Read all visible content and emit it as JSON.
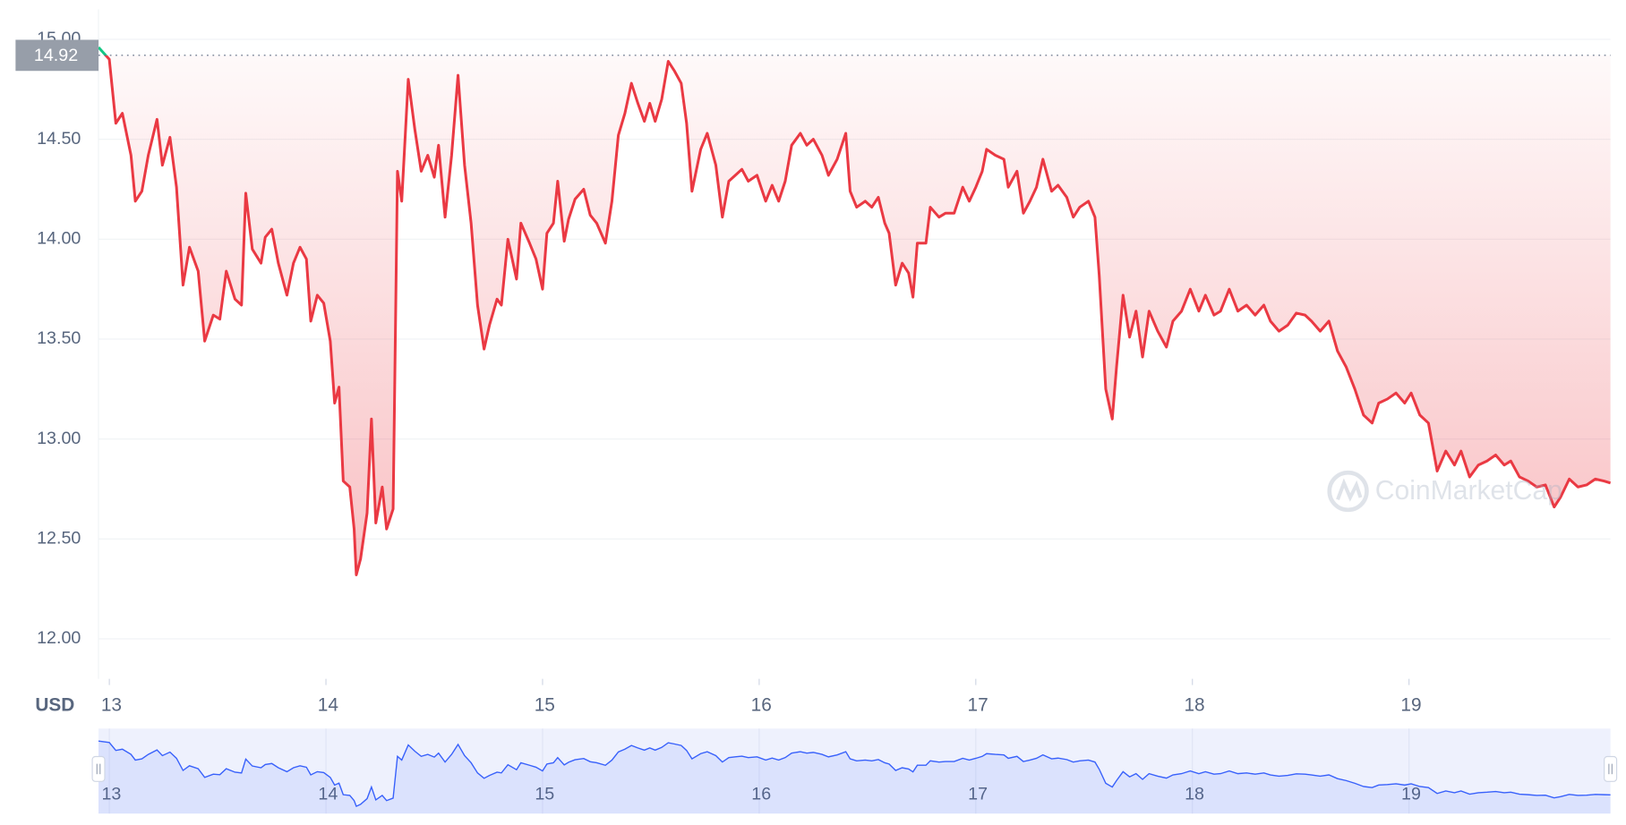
{
  "chart_data": {
    "type": "line",
    "y_axis_label": "USD",
    "watermark": "CoinMarketCap",
    "reference_price": 14.92,
    "grid": true,
    "color": "#ea3943",
    "up_color": "#16c784",
    "navigator_color": "#3861fb",
    "xlim": [
      12.95,
      19.93
    ],
    "xticks": [
      13,
      14,
      15,
      16,
      17,
      18,
      19
    ],
    "ylim": [
      11.8,
      15.15
    ],
    "yticks": [
      {
        "value": 12,
        "label": "12.00"
      },
      {
        "value": 12.5,
        "label": "12.50"
      },
      {
        "value": 13,
        "label": "13.00"
      },
      {
        "value": 13.5,
        "label": "13.50"
      },
      {
        "value": 14,
        "label": "14.00"
      },
      {
        "value": 14.5,
        "label": "14.50"
      },
      {
        "value": 15,
        "label": "15.00"
      }
    ],
    "x": [
      12.95,
      13.0,
      13.03,
      13.06,
      13.1,
      13.12,
      13.15,
      13.18,
      13.22,
      13.245,
      13.28,
      13.31,
      13.34,
      13.37,
      13.41,
      13.44,
      13.48,
      13.51,
      13.54,
      13.58,
      13.61,
      13.63,
      13.66,
      13.7,
      13.72,
      13.75,
      13.78,
      13.82,
      13.85,
      13.88,
      13.91,
      13.93,
      13.96,
      13.99,
      14.02,
      14.04,
      14.06,
      14.08,
      14.11,
      14.13,
      14.14,
      14.16,
      14.19,
      14.21,
      14.23,
      14.26,
      14.28,
      14.31,
      14.33,
      14.35,
      14.38,
      14.41,
      14.44,
      14.47,
      14.5,
      14.52,
      14.55,
      14.58,
      14.61,
      14.64,
      14.67,
      14.7,
      14.73,
      14.755,
      14.79,
      14.81,
      14.84,
      14.88,
      14.9,
      14.94,
      14.97,
      15.0,
      15.02,
      15.05,
      15.07,
      15.1,
      15.12,
      15.15,
      15.19,
      15.22,
      15.25,
      15.29,
      15.32,
      15.35,
      15.38,
      15.41,
      15.44,
      15.47,
      15.495,
      15.52,
      15.55,
      15.58,
      15.61,
      15.64,
      15.665,
      15.69,
      15.73,
      15.76,
      15.8,
      15.83,
      15.86,
      15.89,
      15.92,
      15.95,
      15.99,
      16.03,
      16.06,
      16.09,
      16.12,
      16.15,
      16.19,
      16.22,
      16.25,
      16.29,
      16.32,
      16.36,
      16.4,
      16.42,
      16.45,
      16.49,
      16.52,
      16.55,
      16.58,
      16.6,
      16.63,
      16.66,
      16.69,
      16.71,
      16.73,
      16.77,
      16.79,
      16.83,
      16.86,
      16.9,
      16.94,
      16.97,
      17.0,
      17.03,
      17.05,
      17.09,
      17.13,
      17.15,
      17.19,
      17.22,
      17.25,
      17.28,
      17.31,
      17.35,
      17.38,
      17.42,
      17.45,
      17.48,
      17.52,
      17.55,
      17.57,
      17.6,
      17.63,
      17.65,
      17.68,
      17.71,
      17.74,
      17.77,
      17.8,
      17.84,
      17.88,
      17.91,
      17.95,
      17.99,
      18.03,
      18.06,
      18.1,
      18.13,
      18.17,
      18.21,
      18.25,
      18.29,
      18.33,
      18.36,
      18.4,
      18.44,
      18.48,
      18.52,
      18.55,
      18.59,
      18.63,
      18.67,
      18.71,
      18.75,
      18.79,
      18.83,
      18.86,
      18.9,
      18.94,
      18.98,
      19.01,
      19.05,
      19.09,
      19.13,
      19.17,
      19.21,
      19.24,
      19.28,
      19.32,
      19.36,
      19.4,
      19.44,
      19.47,
      19.51,
      19.55,
      19.59,
      19.63,
      19.67,
      19.7,
      19.74,
      19.78,
      19.82,
      19.86,
      19.9,
      19.93
    ],
    "values": [
      14.96,
      14.9,
      14.58,
      14.63,
      14.42,
      14.19,
      14.24,
      14.42,
      14.6,
      14.37,
      14.51,
      14.26,
      13.77,
      13.96,
      13.84,
      13.49,
      13.62,
      13.6,
      13.84,
      13.7,
      13.67,
      14.23,
      13.95,
      13.88,
      14.01,
      14.05,
      13.88,
      13.72,
      13.88,
      13.96,
      13.9,
      13.59,
      13.72,
      13.68,
      13.49,
      13.18,
      13.26,
      12.79,
      12.76,
      12.55,
      12.32,
      12.4,
      12.63,
      13.1,
      12.58,
      12.76,
      12.55,
      12.65,
      14.34,
      14.19,
      14.8,
      14.55,
      14.34,
      14.42,
      14.31,
      14.47,
      14.11,
      14.42,
      14.82,
      14.37,
      14.08,
      13.67,
      13.45,
      13.57,
      13.7,
      13.67,
      14.0,
      13.8,
      14.08,
      13.98,
      13.9,
      13.75,
      14.03,
      14.08,
      14.29,
      13.99,
      14.1,
      14.2,
      14.25,
      14.12,
      14.08,
      13.98,
      14.19,
      14.52,
      14.63,
      14.78,
      14.68,
      14.59,
      14.68,
      14.59,
      14.7,
      14.89,
      14.84,
      14.78,
      14.58,
      14.24,
      14.45,
      14.53,
      14.37,
      14.11,
      14.29,
      14.32,
      14.35,
      14.29,
      14.32,
      14.19,
      14.27,
      14.19,
      14.29,
      14.47,
      14.53,
      14.47,
      14.5,
      14.42,
      14.32,
      14.4,
      14.53,
      14.24,
      14.16,
      14.19,
      14.16,
      14.21,
      14.08,
      14.03,
      13.77,
      13.88,
      13.83,
      13.71,
      13.98,
      13.98,
      14.16,
      14.11,
      14.13,
      14.13,
      14.26,
      14.19,
      14.26,
      14.34,
      14.45,
      14.42,
      14.4,
      14.26,
      14.34,
      14.13,
      14.19,
      14.26,
      14.4,
      14.24,
      14.27,
      14.21,
      14.11,
      14.16,
      14.19,
      14.11,
      13.82,
      13.25,
      13.1,
      13.36,
      13.72,
      13.51,
      13.64,
      13.41,
      13.64,
      13.54,
      13.46,
      13.59,
      13.64,
      13.75,
      13.64,
      13.72,
      13.62,
      13.64,
      13.75,
      13.64,
      13.67,
      13.62,
      13.67,
      13.59,
      13.54,
      13.57,
      13.63,
      13.62,
      13.59,
      13.54,
      13.59,
      13.44,
      13.36,
      13.25,
      13.12,
      13.08,
      13.18,
      13.2,
      13.23,
      13.18,
      13.23,
      13.12,
      13.08,
      12.84,
      12.94,
      12.87,
      12.94,
      12.81,
      12.87,
      12.89,
      12.92,
      12.87,
      12.89,
      12.81,
      12.79,
      12.76,
      12.77,
      12.66,
      12.71,
      12.8,
      12.76,
      12.77,
      12.8,
      12.79,
      12.78
    ]
  }
}
